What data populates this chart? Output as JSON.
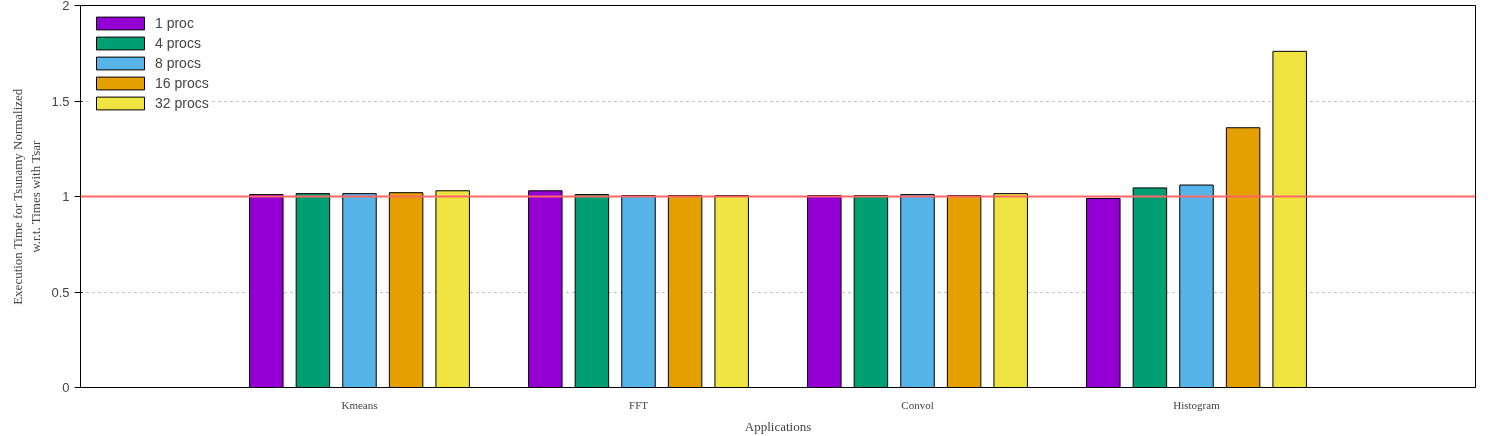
{
  "chart_data": {
    "type": "bar",
    "xlabel": "Applications",
    "ylabel": "Execution Time for Tsunamy Normalized\nw.r.t. Times with Tsar",
    "categories": [
      "Kmeans",
      "FFT",
      "Convol",
      "Histogram"
    ],
    "series": [
      {
        "name": "1 proc",
        "color": "#9400d3",
        "values": [
          1.01,
          1.03,
          1.005,
          0.99
        ]
      },
      {
        "name": "4 procs",
        "color": "#009e73",
        "values": [
          1.015,
          1.01,
          1.005,
          1.045
        ]
      },
      {
        "name": "8 procs",
        "color": "#56b4e9",
        "values": [
          1.015,
          1.005,
          1.01,
          1.06
        ]
      },
      {
        "name": "16 procs",
        "color": "#e69f00",
        "values": [
          1.02,
          1.005,
          1.005,
          1.36
        ]
      },
      {
        "name": "32 procs",
        "color": "#f0e442",
        "values": [
          1.03,
          1.005,
          1.015,
          1.76
        ]
      }
    ],
    "ylim": [
      0,
      2
    ],
    "yticks": [
      0,
      0.5,
      1,
      1.5,
      2
    ],
    "grid": "y",
    "legend": "top left",
    "ref_lines": [
      {
        "axis": "y",
        "value": 1,
        "color": "#ff6666"
      }
    ]
  }
}
